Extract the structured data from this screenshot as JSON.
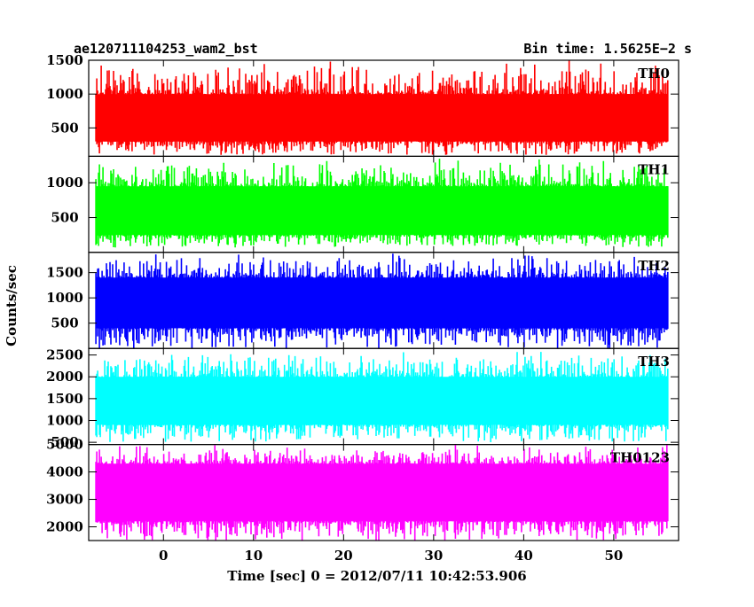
{
  "header": {
    "left_title": "ae120711104253_wam2_bst",
    "right_title": "Bin time: 1.5625E−2 s"
  },
  "chart_data": {
    "type": "line",
    "title": "ae120711104253_wam2_bst",
    "subtitle": "Bin time: 1.5625E−2 s",
    "xlabel": "Time [sec] 0 = 2012/07/11 10:42:53.906",
    "ylabel": "Counts/sec",
    "xlim": [
      -8.3,
      57.2
    ],
    "data_x_range": [
      -7.5,
      56.0
    ],
    "x_ticks": [
      0,
      10,
      20,
      30,
      40,
      50
    ],
    "x_tick_labels": [
      "0",
      "10",
      "20",
      "30",
      "40",
      "50"
    ],
    "grid": false,
    "legend": "none",
    "panels": [
      {
        "name": "TH0",
        "color": "#ff0000",
        "ylim": [
          80,
          1500
        ],
        "y_ticks": [
          500,
          1000,
          1500
        ],
        "y_tick_labels": [
          "500",
          "1000",
          "1500"
        ],
        "typical_low": 300,
        "typical_high": 1000,
        "min": 100,
        "max": 1500
      },
      {
        "name": "TH1",
        "color": "#00ff00",
        "ylim": [
          0,
          1380
        ],
        "y_ticks": [
          500,
          1000
        ],
        "y_tick_labels": [
          "500",
          "1000"
        ],
        "typical_low": 250,
        "typical_high": 950,
        "min": 70,
        "max": 1380
      },
      {
        "name": "TH2",
        "color": "#0000ff",
        "ylim": [
          0,
          1900
        ],
        "y_ticks": [
          500,
          1000,
          1500
        ],
        "y_tick_labels": [
          "500",
          "1000",
          "1500"
        ],
        "typical_low": 400,
        "typical_high": 1400,
        "min": 0,
        "max": 1900
      },
      {
        "name": "TH3",
        "color": "#00ffff",
        "ylim": [
          450,
          2650
        ],
        "y_ticks": [
          500,
          1000,
          1500,
          2000,
          2500
        ],
        "y_tick_labels": [
          "500",
          "1000",
          "1500",
          "2000",
          "2500"
        ],
        "typical_low": 900,
        "typical_high": 2000,
        "min": 500,
        "max": 2600
      },
      {
        "name": "TH0123",
        "color": "#ff00ff",
        "ylim": [
          1500,
          5000
        ],
        "y_ticks": [
          2000,
          3000,
          4000,
          5000
        ],
        "y_tick_labels": [
          "2000",
          "3000",
          "4000",
          "5000"
        ],
        "typical_low": 2200,
        "typical_high": 4300,
        "min": 1500,
        "max": 5000
      }
    ]
  }
}
